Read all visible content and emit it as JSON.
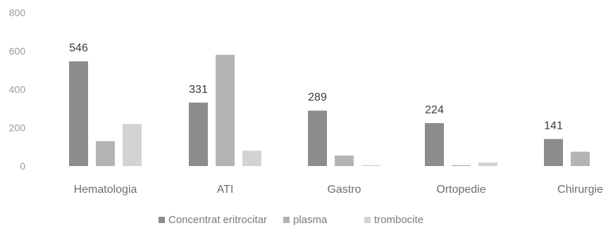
{
  "chart_data": {
    "type": "bar",
    "title": "",
    "xlabel": "",
    "ylabel": "",
    "ylim": [
      0,
      800
    ],
    "yticks": [
      0,
      200,
      400,
      600,
      800
    ],
    "grid": false,
    "legend_position": "bottom",
    "categories": [
      "Hematologia",
      "ATI",
      "Gastro",
      "Ortopedie",
      "Chirurgie"
    ],
    "series": [
      {
        "name": "Concentrat eritrocitar",
        "color": "#8c8c8c",
        "values": [
          546,
          331,
          289,
          224,
          141
        ],
        "labels": [
          "546",
          "331",
          "289",
          "224",
          "141"
        ]
      },
      {
        "name": "plasma",
        "color": "#b4b4b4",
        "values": [
          130,
          580,
          55,
          5,
          75
        ],
        "labels": [
          "",
          "",
          "",
          "",
          ""
        ]
      },
      {
        "name": "trombocite",
        "color": "#d3d3d3",
        "values": [
          220,
          80,
          5,
          18,
          0
        ],
        "labels": [
          "",
          "",
          "",
          "",
          ""
        ]
      }
    ]
  }
}
